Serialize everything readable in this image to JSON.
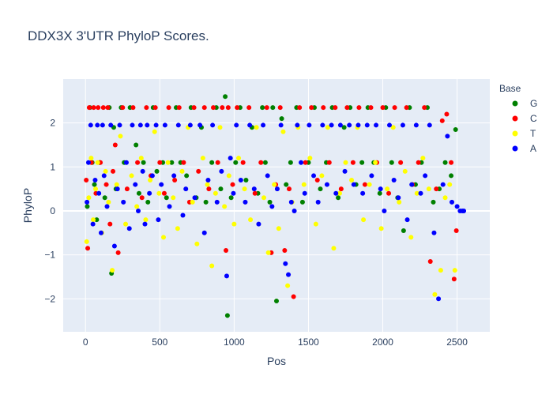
{
  "chart_data": {
    "type": "scatter",
    "title": "DDX3X 3'UTR PhyloP Scores.",
    "xlabel": "Pos",
    "ylabel": "PhyloP",
    "xlim": [
      -150,
      2720
    ],
    "ylim": [
      -2.75,
      3.0
    ],
    "xticks": [
      0,
      500,
      1000,
      1500,
      2000,
      2500
    ],
    "yticks": [
      -2,
      -1,
      0,
      1,
      2
    ],
    "grid": true,
    "legend": {
      "title": "Base",
      "placement": "right"
    },
    "series": [
      {
        "name": "G",
        "color": "#008000",
        "x": [
          12,
          30,
          45,
          60,
          75,
          95,
          130,
          160,
          175,
          190,
          205,
          240,
          260,
          300,
          340,
          360,
          390,
          420,
          455,
          480,
          520,
          545,
          580,
          610,
          640,
          680,
          710,
          745,
          780,
          810,
          850,
          880,
          910,
          940,
          955,
          980,
          1010,
          1040,
          1080,
          1120,
          1160,
          1190,
          1210,
          1240,
          1260,
          1285,
          1320,
          1350,
          1380,
          1420,
          1460,
          1500,
          1540,
          1580,
          1620,
          1660,
          1700,
          1740,
          1780,
          1820,
          1860,
          1900,
          1940,
          1980,
          2020,
          2060,
          2100,
          2140,
          2180,
          2220,
          2260,
          2300,
          2340,
          2380,
          2420,
          2460,
          2490
        ],
        "y": [
          0.1,
          2.35,
          1.1,
          0.6,
          -0.2,
          1.1,
          0.3,
          2.35,
          -1.42,
          1.9,
          0.5,
          2.35,
          1.1,
          2.35,
          1.5,
          0.4,
          1.1,
          0.2,
          2.35,
          0.9,
          1.1,
          0.3,
          1.1,
          2.35,
          1.1,
          0.8,
          2.35,
          0.3,
          1.9,
          0.2,
          1.1,
          2.35,
          0.5,
          2.6,
          -2.38,
          0.3,
          1.1,
          2.35,
          0.7,
          1.9,
          0.4,
          2.35,
          1.1,
          0.2,
          2.35,
          -2.05,
          2.1,
          0.6,
          1.1,
          2.35,
          0.2,
          1.1,
          2.35,
          0.5,
          1.1,
          2.35,
          0.3,
          1.9,
          2.35,
          0.6,
          1.1,
          2.35,
          1.1,
          0.4,
          2.35,
          1.1,
          0.3,
          -0.45,
          2.35,
          0.6,
          1.1,
          2.35,
          0.2,
          0.5,
          1.1,
          0.8,
          1.85
        ]
      },
      {
        "name": "C",
        "color": "#ff0000",
        "x": [
          5,
          15,
          25,
          40,
          55,
          70,
          85,
          100,
          120,
          140,
          150,
          165,
          185,
          200,
          220,
          250,
          280,
          320,
          350,
          380,
          410,
          440,
          470,
          500,
          530,
          560,
          600,
          630,
          660,
          700,
          730,
          760,
          800,
          830,
          860,
          890,
          920,
          945,
          960,
          990,
          1020,
          1060,
          1100,
          1140,
          1180,
          1220,
          1250,
          1280,
          1310,
          1340,
          1370,
          1400,
          1440,
          1480,
          1520,
          1560,
          1600,
          1640,
          1680,
          1720,
          1760,
          1800,
          1840,
          1880,
          1920,
          1960,
          2000,
          2040,
          2080,
          2120,
          2160,
          2200,
          2240,
          2280,
          2320,
          2360,
          2400,
          2430,
          2460,
          2480,
          2495
        ],
        "y": [
          0.7,
          -0.85,
          2.35,
          1.1,
          2.35,
          0.4,
          2.35,
          1.1,
          2.35,
          0.6,
          2.35,
          -0.3,
          0.9,
          1.5,
          -0.95,
          2.35,
          0.5,
          2.35,
          1.1,
          0.3,
          2.35,
          0.8,
          2.35,
          1.1,
          0.4,
          2.35,
          0.7,
          2.35,
          1.1,
          0.2,
          2.35,
          0.9,
          2.35,
          0.5,
          2.35,
          1.1,
          2.35,
          -0.9,
          2.35,
          0.6,
          2.35,
          1.1,
          2.35,
          0.4,
          1.1,
          2.35,
          -0.95,
          0.6,
          2.35,
          -0.9,
          0.5,
          -1.95,
          2.35,
          1.1,
          2.35,
          0.7,
          2.35,
          1.1,
          2.35,
          0.5,
          2.35,
          1.1,
          2.35,
          0.6,
          2.35,
          1.1,
          2.35,
          0.4,
          2.35,
          1.1,
          2.35,
          0.6,
          1.1,
          2.35,
          -1.15,
          0.5,
          2.05,
          2.2,
          1.1,
          -1.55,
          -0.45
        ]
      },
      {
        "name": "T",
        "color": "#ffff00",
        "x": [
          8,
          22,
          38,
          52,
          68,
          82,
          110,
          135,
          155,
          180,
          210,
          235,
          270,
          310,
          345,
          375,
          405,
          435,
          465,
          495,
          525,
          555,
          590,
          620,
          650,
          690,
          720,
          750,
          790,
          820,
          850,
          875,
          905,
          935,
          965,
          1000,
          1030,
          1070,
          1110,
          1150,
          1200,
          1230,
          1270,
          1300,
          1330,
          1360,
          1390,
          1430,
          1470,
          1510,
          1550,
          1590,
          1630,
          1670,
          1710,
          1750,
          1790,
          1830,
          1870,
          1910,
          1950,
          1990,
          2030,
          2070,
          2110,
          2150,
          2190,
          2230,
          2270,
          2310,
          2350,
          2390,
          2420,
          2450,
          2485
        ],
        "y": [
          -0.7,
          0.3,
          1.2,
          -0.2,
          0.5,
          1.1,
          -0.5,
          0.9,
          0.2,
          -1.35,
          0.6,
          1.7,
          -0.3,
          0.8,
          0.1,
          1.2,
          -0.2,
          0.7,
          1.8,
          0.4,
          -0.6,
          1.1,
          0.3,
          -0.4,
          0.9,
          1.9,
          0.2,
          -0.75,
          1.2,
          0.6,
          -1.25,
          0.4,
          1.9,
          0.1,
          0.8,
          -0.3,
          1.2,
          0.5,
          -0.2,
          1.9,
          0.3,
          -0.95,
          0.6,
          -0.4,
          1.8,
          -1.7,
          0.2,
          1.9,
          0.6,
          1.2,
          -0.3,
          0.8,
          1.9,
          -0.85,
          0.4,
          1.1,
          0.7,
          1.9,
          -0.2,
          0.6,
          1.1,
          -0.4,
          0.5,
          1.9,
          0.2,
          0.9,
          -0.6,
          0.4,
          1.2,
          0.5,
          -1.9,
          -1.35,
          0.3,
          0.6,
          -1.35
        ]
      },
      {
        "name": "A",
        "color": "#0000ff",
        "x": [
          10,
          20,
          35,
          50,
          65,
          80,
          90,
          105,
          115,
          125,
          145,
          170,
          195,
          215,
          230,
          255,
          275,
          295,
          315,
          335,
          355,
          370,
          385,
          400,
          415,
          430,
          450,
          475,
          490,
          510,
          535,
          565,
          595,
          625,
          655,
          675,
          705,
          735,
          770,
          800,
          825,
          855,
          885,
          915,
          950,
          975,
          995,
          1015,
          1045,
          1075,
          1105,
          1135,
          1165,
          1195,
          1225,
          1255,
          1290,
          1315,
          1345,
          1365,
          1385,
          1405,
          1425,
          1450,
          1475,
          1505,
          1535,
          1565,
          1595,
          1625,
          1655,
          1685,
          1715,
          1745,
          1775,
          1805,
          1835,
          1865,
          1895,
          1925,
          1955,
          1985,
          2010,
          2045,
          2075,
          2105,
          2135,
          2165,
          2195,
          2225,
          2255,
          2285,
          2315,
          2345,
          2375,
          2405,
          2435,
          2465,
          2500,
          2520,
          2535,
          2545
        ],
        "y": [
          0.2,
          1.1,
          1.95,
          -0.3,
          0.7,
          1.95,
          0.4,
          -0.5,
          1.95,
          0.8,
          0.1,
          1.95,
          -0.8,
          0.5,
          1.95,
          0.2,
          1.1,
          -0.4,
          1.95,
          0.6,
          0.0,
          1.95,
          0.9,
          -0.3,
          1.95,
          0.4,
          0.8,
          1.95,
          -0.2,
          0.6,
          1.95,
          0.1,
          0.8,
          1.95,
          -0.1,
          0.5,
          1.95,
          0.3,
          1.95,
          -0.5,
          0.7,
          1.95,
          0.2,
          0.9,
          -1.48,
          1.2,
          0.4,
          1.95,
          0.7,
          0.2,
          1.95,
          0.5,
          -0.3,
          1.95,
          0.8,
          0.1,
          0.5,
          1.95,
          -1.2,
          -1.45,
          0.2,
          0.0,
          1.95,
          1.1,
          0.4,
          1.95,
          0.8,
          0.2,
          1.95,
          0.6,
          1.95,
          0.4,
          1.95,
          0.9,
          1.95,
          0.6,
          1.95,
          0.4,
          1.95,
          0.8,
          1.95,
          0.5,
          0.0,
          1.95,
          0.7,
          0.3,
          1.95,
          -0.2,
          0.6,
          1.95,
          0.4,
          0.8,
          1.95,
          -0.5,
          -2.0,
          0.6,
          1.7,
          0.2,
          0.1,
          0.0,
          0.0,
          0.0
        ]
      }
    ]
  }
}
